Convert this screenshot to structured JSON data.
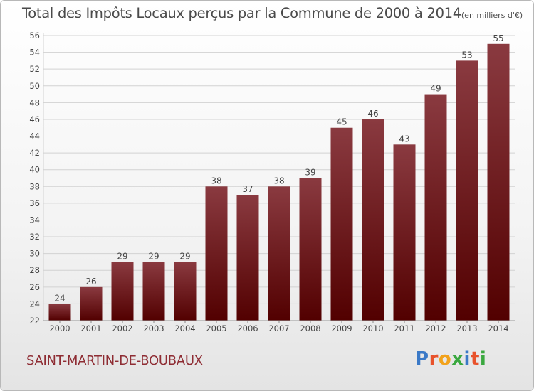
{
  "title": {
    "main": "Total des Impôts Locaux perçus par la Commune de 2000 à 2014",
    "unit": "(en milliers d'€)"
  },
  "commune": "SAINT-MARTIN-DE-BOUBAUX",
  "brand": {
    "text": "Proxiti",
    "letter_colors": [
      "#3a79c7",
      "#e8522b",
      "#f2a21b",
      "#3aa83f",
      "#3a79c7",
      "#e8522b",
      "#3aa83f"
    ]
  },
  "colors": {
    "bar_top": "#8a3a40",
    "bar_bottom": "#520000",
    "grid": "#d2d2d2",
    "axis_text": "#444444",
    "label_text": "#444444"
  },
  "chart_data": {
    "type": "bar",
    "title": "Total des Impôts Locaux perçus par la Commune de 2000 à 2014 (en milliers d'€)",
    "xlabel": "",
    "ylabel": "",
    "categories": [
      "2000",
      "2001",
      "2002",
      "2003",
      "2004",
      "2005",
      "2006",
      "2007",
      "2008",
      "2009",
      "2010",
      "2011",
      "2012",
      "2013",
      "2014"
    ],
    "values": [
      24,
      26,
      29,
      29,
      29,
      38,
      37,
      38,
      39,
      45,
      46,
      43,
      49,
      53,
      55
    ],
    "ylim": [
      22,
      56
    ],
    "yticks": [
      22,
      24,
      26,
      28,
      30,
      32,
      34,
      36,
      38,
      40,
      42,
      44,
      46,
      48,
      50,
      52,
      54,
      56
    ],
    "grid": true,
    "data_labels": [
      "24",
      "26",
      "29",
      "29",
      "29",
      "38",
      "37",
      "38",
      "39",
      "45",
      "46",
      "43",
      "49",
      "53",
      "55"
    ]
  }
}
